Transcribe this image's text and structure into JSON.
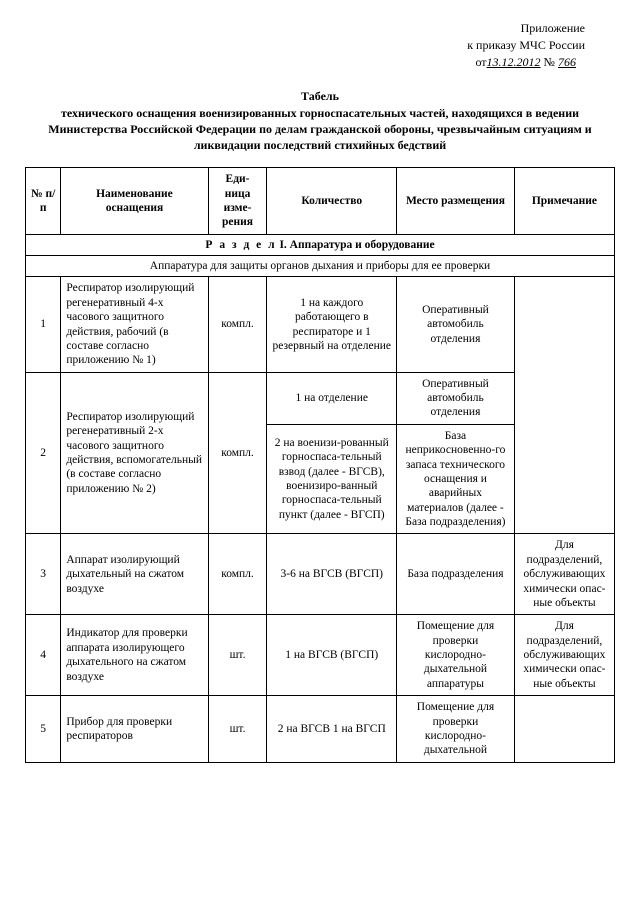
{
  "appendix": {
    "line1": "Приложение",
    "line2": "к приказу МЧС России",
    "prefix": "от",
    "date": "13.12.2012",
    "no": "№",
    "num": "766"
  },
  "title": {
    "head": "Табель",
    "body": "технического оснащения военизированных горноспасательных частей, находящихся в ведении Министерства Российской Федерации по делам гражданской обороны, чрезвычайным ситуациям и ликвидации последствий стихийных бедствий"
  },
  "headers": {
    "num": "№ п/п",
    "name": "Наименование оснащения",
    "unit": "Еди-ница изме-рения",
    "qty": "Количество",
    "loc": "Место размещения",
    "note": "Примечание"
  },
  "section": {
    "prefix": "Р а з д е л",
    "title": " I. Аппаратура и оборудование",
    "sub": "Аппаратура для защиты органов дыхания и приборы для ее проверки"
  },
  "rows": {
    "r1": {
      "num": "1",
      "name": "Респиратор изолирующий регенеративный 4-х часового защитного действия, рабочий (в составе согласно приложению № 1)",
      "unit": "компл.",
      "qty": "1 на каждого работающего в респираторе и 1 резервный на отделение",
      "loc": "Оперативный автомобиль отделения"
    },
    "r2": {
      "num": "2",
      "name": "Респиратор изолирующий регенеративный 2-х часового защитного действия, вспомогательный (в составе согласно приложению № 2)",
      "unit": "компл.",
      "qty_a": "1 на отделение",
      "loc_a": "Оперативный автомобиль отделения",
      "qty_b": "2 на военизи-рованный горноспаса-тельный взвод (далее - ВГСВ), военизиро-ванный горноспаса-тельный пункт (далее - ВГСП)",
      "loc_b": "База неприкосновенно-го запаса технического оснащения и аварийных материалов (далее - База подразделения)"
    },
    "r3": {
      "num": "3",
      "name": "Аппарат изолирующий дыхательный на сжатом воздухе",
      "unit": "компл.",
      "qty": "3-6 на ВГСВ (ВГСП)",
      "loc": "База подразделения",
      "note": "Для подразделений, обслуживающих химически опас-ные объекты"
    },
    "r4": {
      "num": "4",
      "name": "Индикатор для проверки аппарата изолирующего дыхательного на сжатом воздухе",
      "unit": "шт.",
      "qty": "1 на ВГСВ (ВГСП)",
      "loc": "Помещение для проверки кислородно-дыхательной аппаратуры",
      "note": "Для подразделений, обслуживающих химически опас-ные объекты"
    },
    "r5": {
      "num": "5",
      "name": "Прибор для проверки респираторов",
      "unit": "шт.",
      "qty": "2 на ВГСВ 1 на ВГСП",
      "loc": "Помещение для проверки кислородно-дыхательной"
    }
  }
}
